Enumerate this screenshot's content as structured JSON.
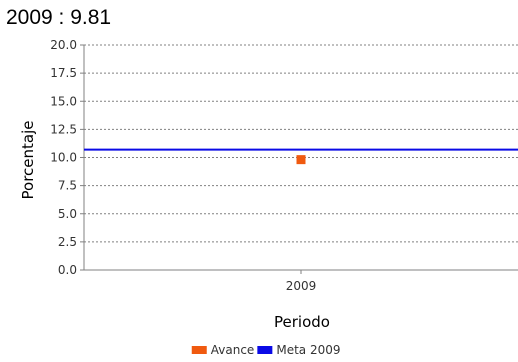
{
  "chart_data": {
    "type": "scatter",
    "title": "2009 : 9.81",
    "xlabel": "Periodo",
    "ylabel": "Porcentaje",
    "categories": [
      "2009"
    ],
    "ylim": [
      0,
      20
    ],
    "yticks": [
      "0.0",
      "2.5",
      "5.0",
      "7.5",
      "10.0",
      "12.5",
      "15.0",
      "17.5",
      "20.0"
    ],
    "grid": true,
    "legend_position": "bottom",
    "series": [
      {
        "name": "Avance",
        "type": "point",
        "color": "#f05a0f",
        "values": [
          9.81
        ]
      },
      {
        "name": "Meta 2009",
        "type": "reference-line",
        "color": "#0a0ae6",
        "value": 10.7
      }
    ]
  }
}
